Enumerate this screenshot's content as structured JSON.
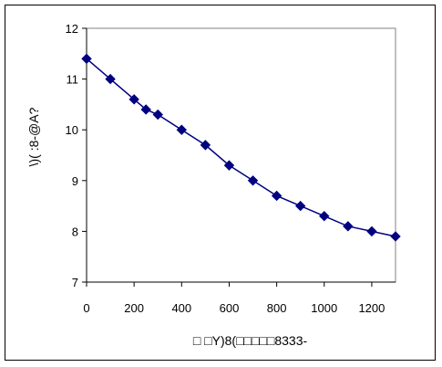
{
  "chart_data": {
    "type": "line",
    "title": "",
    "xlabel": "□ □Y)8(□□□□□8333-",
    "ylabel": "\\)( :8-@A?",
    "xlim": [
      0,
      1300
    ],
    "ylim": [
      7,
      12
    ],
    "x_ticks": [
      0,
      200,
      400,
      600,
      800,
      1000,
      1200
    ],
    "y_ticks": [
      7,
      8,
      9,
      10,
      11,
      12
    ],
    "grid": false,
    "legend": "none",
    "marker": "diamond",
    "colors": {
      "series": "#000080",
      "plot_border": "#808080",
      "frame": "#000000"
    },
    "series": [
      {
        "x": [
          0,
          100,
          200,
          250,
          300,
          400,
          500,
          600,
          700,
          800,
          900,
          1000,
          1100,
          1200,
          1300
        ],
        "y": [
          11.4,
          11.0,
          10.6,
          10.4,
          10.3,
          10.0,
          9.7,
          9.3,
          9.0,
          8.7,
          8.5,
          8.3,
          8.1,
          8.0,
          7.9
        ]
      }
    ]
  }
}
